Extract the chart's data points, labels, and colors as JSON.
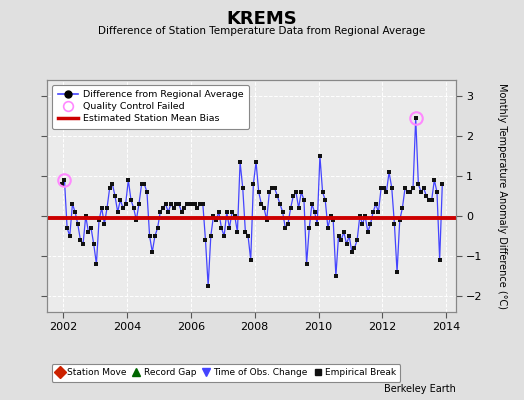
{
  "title": "KREMS",
  "subtitle": "Difference of Station Temperature Data from Regional Average",
  "ylabel": "Monthly Temperature Anomaly Difference (°C)",
  "bias": -0.05,
  "xlim": [
    2001.5,
    2014.3
  ],
  "ylim": [
    -2.4,
    3.4
  ],
  "yticks": [
    -2,
    -1,
    0,
    1,
    2,
    3
  ],
  "xticks": [
    2002,
    2004,
    2006,
    2008,
    2010,
    2012,
    2014
  ],
  "bg_color": "#e0e0e0",
  "plot_bg": "#ebebeb",
  "line_color": "#4444ff",
  "marker_color": "#111111",
  "bias_color": "#cc0000",
  "qc_color": "#ff88ff",
  "watermark": "Berkeley Earth",
  "times": [
    2001.958,
    2002.042,
    2002.125,
    2002.208,
    2002.292,
    2002.375,
    2002.458,
    2002.542,
    2002.625,
    2002.708,
    2002.792,
    2002.875,
    2002.958,
    2003.042,
    2003.125,
    2003.208,
    2003.292,
    2003.375,
    2003.458,
    2003.542,
    2003.625,
    2003.708,
    2003.792,
    2003.875,
    2003.958,
    2004.042,
    2004.125,
    2004.208,
    2004.292,
    2004.375,
    2004.458,
    2004.542,
    2004.625,
    2004.708,
    2004.792,
    2004.875,
    2004.958,
    2005.042,
    2005.125,
    2005.208,
    2005.292,
    2005.375,
    2005.458,
    2005.542,
    2005.625,
    2005.708,
    2005.792,
    2005.875,
    2005.958,
    2006.042,
    2006.125,
    2006.208,
    2006.292,
    2006.375,
    2006.458,
    2006.542,
    2006.625,
    2006.708,
    2006.792,
    2006.875,
    2006.958,
    2007.042,
    2007.125,
    2007.208,
    2007.292,
    2007.375,
    2007.458,
    2007.542,
    2007.625,
    2007.708,
    2007.792,
    2007.875,
    2007.958,
    2008.042,
    2008.125,
    2008.208,
    2008.292,
    2008.375,
    2008.458,
    2008.542,
    2008.625,
    2008.708,
    2008.792,
    2008.875,
    2008.958,
    2009.042,
    2009.125,
    2009.208,
    2009.292,
    2009.375,
    2009.458,
    2009.542,
    2009.625,
    2009.708,
    2009.792,
    2009.875,
    2009.958,
    2010.042,
    2010.125,
    2010.208,
    2010.292,
    2010.375,
    2010.458,
    2010.542,
    2010.625,
    2010.708,
    2010.792,
    2010.875,
    2010.958,
    2011.042,
    2011.125,
    2011.208,
    2011.292,
    2011.375,
    2011.458,
    2011.542,
    2011.625,
    2011.708,
    2011.792,
    2011.875,
    2011.958,
    2012.042,
    2012.125,
    2012.208,
    2012.292,
    2012.375,
    2012.458,
    2012.542,
    2012.625,
    2012.708,
    2012.792,
    2012.875,
    2012.958,
    2013.042,
    2013.125,
    2013.208,
    2013.292,
    2013.375,
    2013.458,
    2013.542,
    2013.625,
    2013.708,
    2013.792,
    2013.875
  ],
  "values": [
    0.8,
    0.9,
    -0.3,
    -0.5,
    0.3,
    0.1,
    -0.2,
    -0.6,
    -0.7,
    0.0,
    -0.4,
    -0.3,
    -0.7,
    -1.2,
    -0.1,
    0.2,
    -0.2,
    0.2,
    0.7,
    0.8,
    0.5,
    0.1,
    0.4,
    0.2,
    0.3,
    0.9,
    0.4,
    0.2,
    -0.1,
    0.3,
    0.8,
    0.8,
    0.6,
    -0.5,
    -0.9,
    -0.5,
    -0.3,
    0.1,
    0.2,
    0.3,
    0.1,
    0.3,
    0.2,
    0.3,
    0.3,
    0.1,
    0.2,
    0.3,
    0.3,
    0.3,
    0.3,
    0.2,
    0.3,
    0.3,
    -0.6,
    -1.75,
    -0.5,
    0.0,
    -0.1,
    0.1,
    -0.3,
    -0.5,
    0.1,
    -0.3,
    0.1,
    0.0,
    -0.4,
    1.35,
    0.7,
    -0.4,
    -0.5,
    -1.1,
    0.8,
    1.35,
    0.6,
    0.3,
    0.2,
    -0.1,
    0.6,
    0.7,
    0.7,
    0.5,
    0.3,
    0.1,
    -0.3,
    -0.2,
    0.2,
    0.5,
    0.6,
    0.2,
    0.6,
    0.4,
    -1.2,
    -0.3,
    0.3,
    0.1,
    -0.2,
    1.5,
    0.6,
    0.4,
    -0.3,
    0.0,
    -0.1,
    -1.5,
    -0.5,
    -0.6,
    -0.4,
    -0.7,
    -0.5,
    -0.9,
    -0.8,
    -0.6,
    0.0,
    -0.2,
    0.0,
    -0.4,
    -0.2,
    0.1,
    0.3,
    0.1,
    0.7,
    0.7,
    0.6,
    1.1,
    0.7,
    -0.2,
    -1.4,
    -0.1,
    0.2,
    0.7,
    0.6,
    0.6,
    0.7,
    2.45,
    0.8,
    0.6,
    0.7,
    0.5,
    0.4,
    0.4,
    0.9,
    0.6,
    -1.1,
    0.8
  ],
  "qc_failed_times": [
    2002.042,
    2013.042
  ],
  "qc_failed_values": [
    0.9,
    2.45
  ]
}
